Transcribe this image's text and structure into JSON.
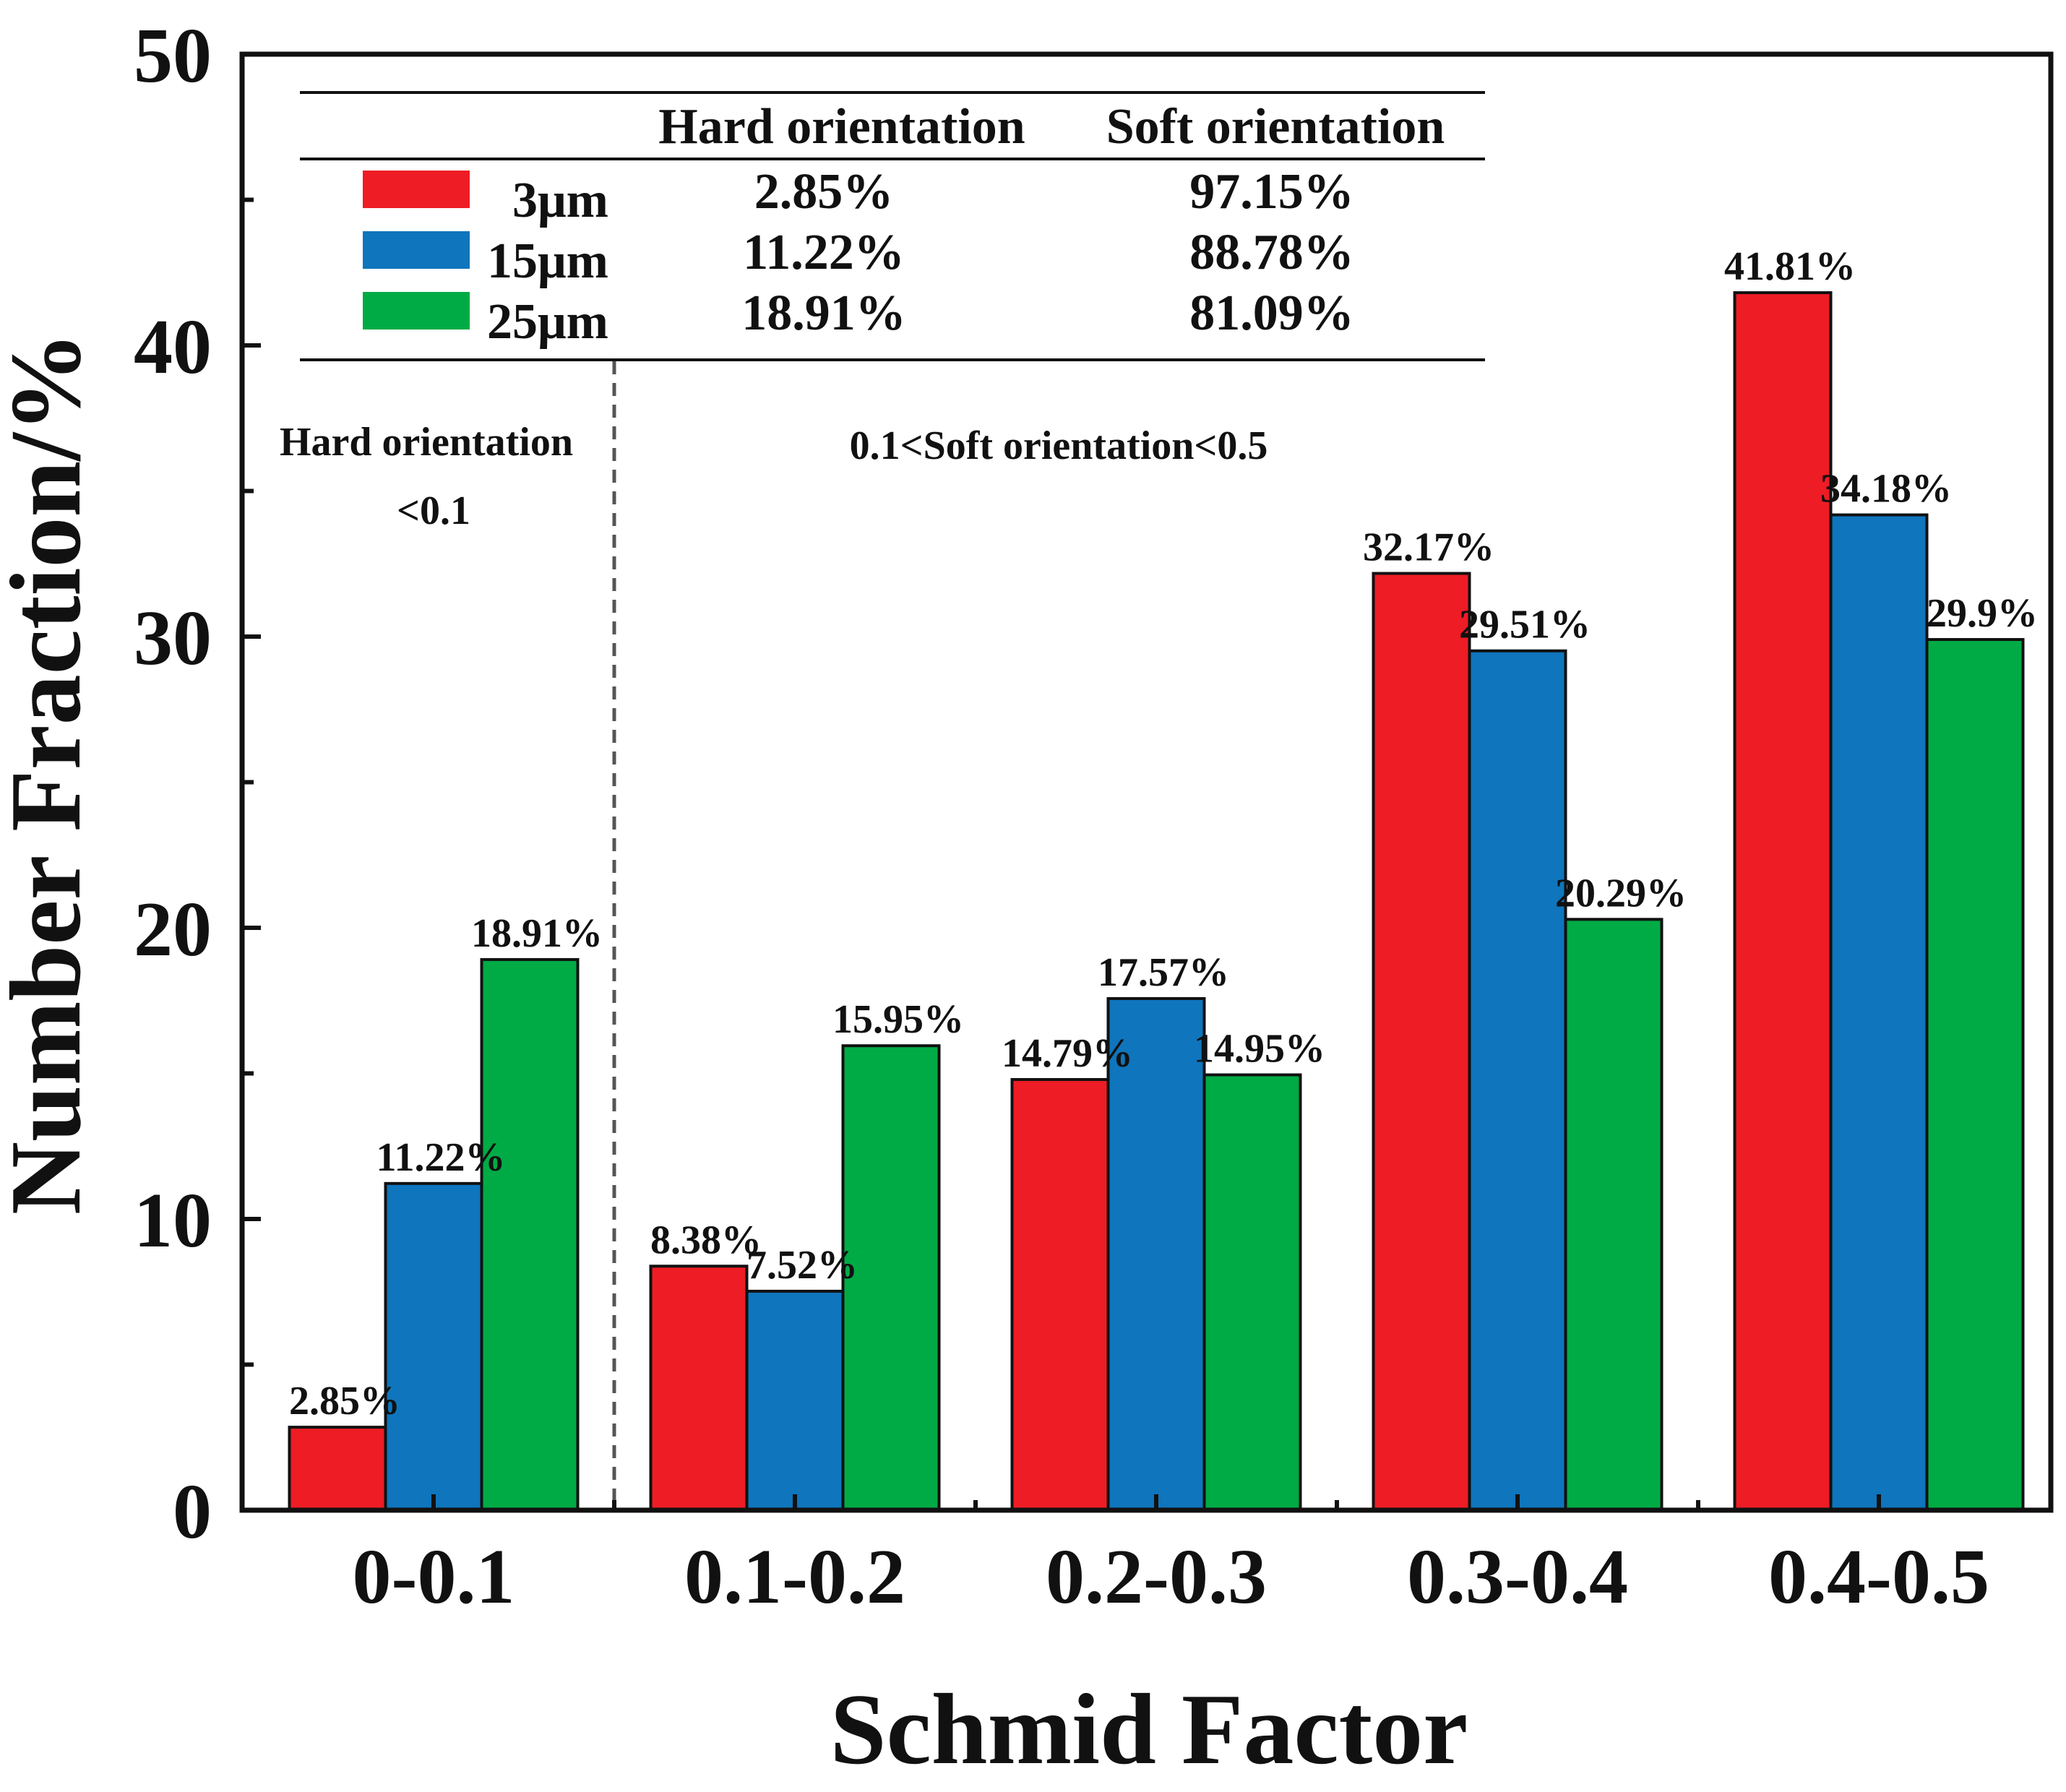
{
  "chart_data": {
    "type": "bar",
    "title": "",
    "xlabel": "Schmid Factor",
    "ylabel": "Number Fraction/%",
    "ylim": [
      0,
      50
    ],
    "yticks": [
      "0",
      "10",
      "20",
      "30",
      "40",
      "50"
    ],
    "categories": [
      "0-0.1",
      "0.1-0.2",
      "0.2-0.3",
      "0.3-0.4",
      "0.4-0.5"
    ],
    "series": [
      {
        "name": "3μm",
        "color": "#ee1c25",
        "values": [
          2.85,
          8.38,
          14.79,
          32.17,
          41.81
        ],
        "labels": [
          "2.85%",
          "8.38%",
          "14.79%",
          "32.17%",
          "41.81%"
        ]
      },
      {
        "name": "15μm",
        "color": "#0f75bc",
        "values": [
          11.22,
          7.52,
          17.57,
          29.51,
          34.18
        ],
        "labels": [
          "11.22%",
          "7.52%",
          "17.57%",
          "29.51%",
          "34.18%"
        ]
      },
      {
        "name": "25μm",
        "color": "#00ab45",
        "values": [
          18.91,
          15.95,
          14.95,
          20.29,
          29.9
        ],
        "labels": [
          "18.91%",
          "15.95%",
          "14.95%",
          "20.29%",
          "29.9%"
        ]
      }
    ],
    "legend_table": {
      "headers": [
        "Hard orientation",
        "Soft orientation"
      ],
      "rows": [
        {
          "name": "3μm",
          "hard": "2.85%",
          "soft": "97.15%"
        },
        {
          "name": "15μm",
          "hard": "11.22%",
          "soft": "88.78%"
        },
        {
          "name": "25μm",
          "hard": "18.91%",
          "soft": "81.09%"
        }
      ]
    },
    "annotations": {
      "hard_line1": "Hard orientation",
      "hard_line2": "<0.1",
      "soft": "0.1<Soft orientation<0.5"
    },
    "divider_at_category_boundary": 1
  }
}
